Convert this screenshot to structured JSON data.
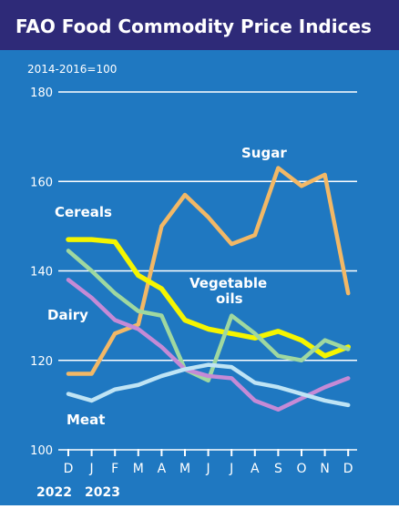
{
  "colors": {
    "title_bg": "#2e2a78",
    "plot_bg": "#1f78c1",
    "gridline": "#ffffff",
    "text": "#ffffff",
    "sugar": "#f2b866",
    "cereals": "#f5f500",
    "vegetable_oils": "#9fd8a0",
    "dairy": "#c58ad6",
    "meat": "#bfe4f5"
  },
  "chart_data": {
    "type": "line",
    "title": "FAO Food Commodity Price Indices",
    "subtitle": "2014-2016=100",
    "x": [
      "D",
      "J",
      "F",
      "M",
      "A",
      "M",
      "J",
      "J",
      "A",
      "S",
      "O",
      "N",
      "D"
    ],
    "year_labels": [
      "2022",
      "2023"
    ],
    "ylim": [
      100,
      180
    ],
    "yticks": [
      100,
      120,
      140,
      160,
      180
    ],
    "grid": true,
    "series": [
      {
        "name": "Sugar",
        "color_key": "sugar",
        "values": [
          117,
          117,
          126,
          128,
          150,
          157,
          152,
          146,
          148,
          163,
          159,
          161.5,
          135
        ]
      },
      {
        "name": "Cereals",
        "color_key": "cereals",
        "values": [
          147,
          147,
          146.5,
          139,
          136,
          129,
          127,
          126,
          125,
          126.5,
          124.5,
          121,
          123
        ]
      },
      {
        "name": "Vegetable oils",
        "color_key": "vegetable_oils",
        "values": [
          144.5,
          140,
          135,
          131,
          130,
          118,
          115.5,
          130,
          126,
          121,
          120,
          124.5,
          122.5
        ]
      },
      {
        "name": "Dairy",
        "color_key": "dairy",
        "values": [
          138,
          134,
          129,
          127,
          123,
          118,
          116.5,
          116,
          111,
          109,
          111.5,
          114,
          116
        ]
      },
      {
        "name": "Meat",
        "color_key": "meat",
        "values": [
          112.5,
          111,
          113.5,
          114.5,
          116.5,
          118,
          119,
          118.5,
          115,
          114,
          112.5,
          111,
          110
        ]
      }
    ],
    "series_labels": [
      "Sugar",
      "Cereals",
      "Vegetable",
      "oils",
      "Dairy",
      "Meat"
    ]
  }
}
